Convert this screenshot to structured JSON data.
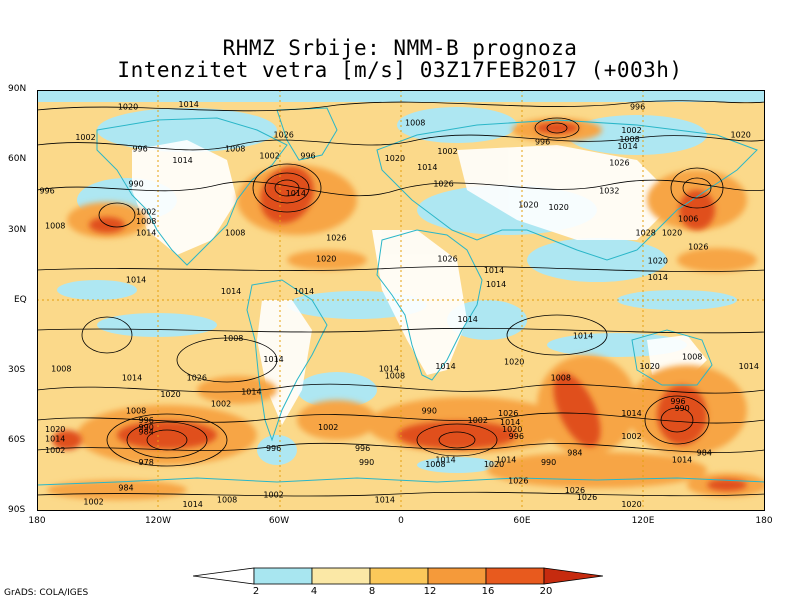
{
  "title": {
    "line1": "RHMZ Srbije: NMM-B prognoza",
    "line2": "Intenzitet vetra [m/s] 03Z17FEB2017 (+003h)"
  },
  "lat_ticks": [
    "90N",
    "60N",
    "30N",
    "EQ",
    "30S",
    "60S",
    "90S"
  ],
  "lon_ticks": [
    "180",
    "120W",
    "60W",
    "0",
    "60E",
    "120E",
    "180"
  ],
  "credit": "GrADS: COLA/IGES",
  "colorbar": {
    "levels": [
      "2",
      "4",
      "8",
      "12",
      "16",
      "20"
    ],
    "colors": [
      "#ffffff",
      "#a8e6f0",
      "#fbe8a6",
      "#fbc85a",
      "#f59a3a",
      "#e85a1e",
      "#c62b0f"
    ]
  },
  "isobar_labels": [
    {
      "text": "1020",
      "lon": -135,
      "lat": 83
    },
    {
      "text": "1014",
      "lon": -105,
      "lat": 84
    },
    {
      "text": "996",
      "lon": 117,
      "lat": 83
    },
    {
      "text": "1002",
      "lon": -156,
      "lat": 70
    },
    {
      "text": "1008",
      "lon": 7,
      "lat": 76
    },
    {
      "text": "1026",
      "lon": -58,
      "lat": 71
    },
    {
      "text": "996",
      "lon": -129,
      "lat": 65
    },
    {
      "text": "1008",
      "lon": -82,
      "lat": 65
    },
    {
      "text": "1002",
      "lon": -65,
      "lat": 62
    },
    {
      "text": "996",
      "lon": -46,
      "lat": 62
    },
    {
      "text": "1014",
      "lon": -108,
      "lat": 60
    },
    {
      "text": "1020",
      "lon": -3,
      "lat": 61
    },
    {
      "text": "1002",
      "lon": 23,
      "lat": 64
    },
    {
      "text": "1014",
      "lon": 13,
      "lat": 57
    },
    {
      "text": "996",
      "lon": 70,
      "lat": 68
    },
    {
      "text": "1002",
      "lon": 114,
      "lat": 73
    },
    {
      "text": "1008",
      "lon": 113,
      "lat": 69
    },
    {
      "text": "1014",
      "lon": 112,
      "lat": 66
    },
    {
      "text": "1020",
      "lon": 168,
      "lat": 71
    },
    {
      "text": "1026",
      "lon": 108,
      "lat": 59
    },
    {
      "text": "996",
      "lon": -175,
      "lat": 47
    },
    {
      "text": "990",
      "lon": -131,
      "lat": 50
    },
    {
      "text": "1026",
      "lon": 21,
      "lat": 50
    },
    {
      "text": "1014",
      "lon": -52,
      "lat": 46
    },
    {
      "text": "1032",
      "lon": 103,
      "lat": 47
    },
    {
      "text": "1020",
      "lon": 63,
      "lat": 41
    },
    {
      "text": "1020",
      "lon": 78,
      "lat": 40
    },
    {
      "text": "1002",
      "lon": -126,
      "lat": 38
    },
    {
      "text": "1008",
      "lon": -126,
      "lat": 34
    },
    {
      "text": "1014",
      "lon": -126,
      "lat": 29
    },
    {
      "text": "1008",
      "lon": -171,
      "lat": 32
    },
    {
      "text": "1008",
      "lon": -82,
      "lat": 29
    },
    {
      "text": "1026",
      "lon": -32,
      "lat": 27
    },
    {
      "text": "1006",
      "lon": 142,
      "lat": 35
    },
    {
      "text": "1028",
      "lon": 121,
      "lat": 29
    },
    {
      "text": "1020",
      "lon": 134,
      "lat": 29
    },
    {
      "text": "1026",
      "lon": 147,
      "lat": 23
    },
    {
      "text": "1020",
      "lon": -37,
      "lat": 18
    },
    {
      "text": "1026",
      "lon": 23,
      "lat": 18
    },
    {
      "text": "1020",
      "lon": 127,
      "lat": 17
    },
    {
      "text": "1014",
      "lon": 46,
      "lat": 13
    },
    {
      "text": "1014",
      "lon": -131,
      "lat": 9
    },
    {
      "text": "1014",
      "lon": 47,
      "lat": 7
    },
    {
      "text": "1014",
      "lon": 127,
      "lat": 10
    },
    {
      "text": "1014",
      "lon": -84,
      "lat": 4
    },
    {
      "text": "1014",
      "lon": -48,
      "lat": 4
    },
    {
      "text": "1014",
      "lon": 33,
      "lat": -8
    },
    {
      "text": "1008",
      "lon": -83,
      "lat": -16
    },
    {
      "text": "1014",
      "lon": 90,
      "lat": -15
    },
    {
      "text": "1014",
      "lon": -63,
      "lat": -25
    },
    {
      "text": "1014",
      "lon": -6,
      "lat": -29
    },
    {
      "text": "1014",
      "lon": 22,
      "lat": -28
    },
    {
      "text": "1020",
      "lon": 56,
      "lat": -26
    },
    {
      "text": "1008",
      "lon": -168,
      "lat": -29
    },
    {
      "text": "1020",
      "lon": 123,
      "lat": -28
    },
    {
      "text": "1008",
      "lon": 144,
      "lat": -24
    },
    {
      "text": "1014",
      "lon": 172,
      "lat": -28
    },
    {
      "text": "1014",
      "lon": -133,
      "lat": -33
    },
    {
      "text": "1026",
      "lon": -101,
      "lat": -33
    },
    {
      "text": "1008",
      "lon": -3,
      "lat": -32
    },
    {
      "text": "1008",
      "lon": 79,
      "lat": -33
    },
    {
      "text": "1020",
      "lon": -114,
      "lat": -40
    },
    {
      "text": "1014",
      "lon": -74,
      "lat": -39
    },
    {
      "text": "1008",
      "lon": -131,
      "lat": -47
    },
    {
      "text": "1002",
      "lon": -89,
      "lat": -44
    },
    {
      "text": "990",
      "lon": 14,
      "lat": -47
    },
    {
      "text": "996",
      "lon": 137,
      "lat": -43
    },
    {
      "text": "990",
      "lon": 139,
      "lat": -46
    },
    {
      "text": "1014",
      "lon": 114,
      "lat": -48
    },
    {
      "text": "1026",
      "lon": 53,
      "lat": -48
    },
    {
      "text": "1002",
      "lon": 38,
      "lat": -51
    },
    {
      "text": "1014",
      "lon": 54,
      "lat": -52
    },
    {
      "text": "1020",
      "lon": 55,
      "lat": -55
    },
    {
      "text": "996",
      "lon": -126,
      "lat": -51
    },
    {
      "text": "990",
      "lon": -126,
      "lat": -54
    },
    {
      "text": "984",
      "lon": -126,
      "lat": -56
    },
    {
      "text": "1002",
      "lon": -36,
      "lat": -54
    },
    {
      "text": "1020",
      "lon": -171,
      "lat": -55
    },
    {
      "text": "1014",
      "lon": -171,
      "lat": -59
    },
    {
      "text": "1002",
      "lon": -171,
      "lat": -64
    },
    {
      "text": "996",
      "lon": 57,
      "lat": -58
    },
    {
      "text": "1002",
      "lon": 114,
      "lat": -58
    },
    {
      "text": "996",
      "lon": -63,
      "lat": -63
    },
    {
      "text": "996",
      "lon": -19,
      "lat": -63
    },
    {
      "text": "990",
      "lon": -17,
      "lat": -69
    },
    {
      "text": "1008",
      "lon": 17,
      "lat": -70
    },
    {
      "text": "1014",
      "lon": 22,
      "lat": -68
    },
    {
      "text": "1014",
      "lon": 52,
      "lat": -68
    },
    {
      "text": "1020",
      "lon": 46,
      "lat": -70
    },
    {
      "text": "990",
      "lon": 73,
      "lat": -69
    },
    {
      "text": "984",
      "lon": 86,
      "lat": -65
    },
    {
      "text": "984",
      "lon": 150,
      "lat": -65
    },
    {
      "text": "1014",
      "lon": 139,
      "lat": -68
    },
    {
      "text": "978",
      "lon": -126,
      "lat": -69
    },
    {
      "text": "1026",
      "lon": 58,
      "lat": -77
    },
    {
      "text": "1026",
      "lon": 86,
      "lat": -81
    },
    {
      "text": "1026",
      "lon": 92,
      "lat": -84
    },
    {
      "text": "1020",
      "lon": 114,
      "lat": -87
    },
    {
      "text": "984",
      "lon": -136,
      "lat": -80
    },
    {
      "text": "1002",
      "lon": -152,
      "lat": -86
    },
    {
      "text": "1002",
      "lon": -63,
      "lat": -83
    },
    {
      "text": "1008",
      "lon": -86,
      "lat": -85
    },
    {
      "text": "1014",
      "lon": -103,
      "lat": -87
    },
    {
      "text": "1014",
      "lon": -8,
      "lat": -85
    }
  ]
}
